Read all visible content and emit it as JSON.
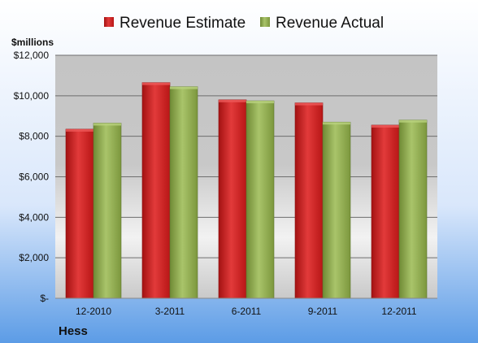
{
  "chart_data": {
    "type": "bar",
    "company": "Hess",
    "unit_label": "$millions",
    "categories": [
      "12-2010",
      "3-2011",
      "6-2011",
      "9-2011",
      "12-2011"
    ],
    "series": [
      {
        "name": "Revenue Estimate",
        "color": "#cc1f1f",
        "values": [
          8350,
          10650,
          9800,
          9650,
          8550
        ]
      },
      {
        "name": "Revenue Actual",
        "color": "#8fa84e",
        "values": [
          8650,
          10450,
          9750,
          8700,
          8800
        ]
      }
    ],
    "ylim": [
      0,
      12000
    ],
    "yticks": [
      {
        "value": 0,
        "label": "$-"
      },
      {
        "value": 2000,
        "label": "$2,000"
      },
      {
        "value": 4000,
        "label": "$4,000"
      },
      {
        "value": 6000,
        "label": "$6,000"
      },
      {
        "value": 8000,
        "label": "$8,000"
      },
      {
        "value": 10000,
        "label": "$10,000"
      },
      {
        "value": 12000,
        "label": "$12,000"
      }
    ],
    "grid": true,
    "legend_position": "top"
  }
}
